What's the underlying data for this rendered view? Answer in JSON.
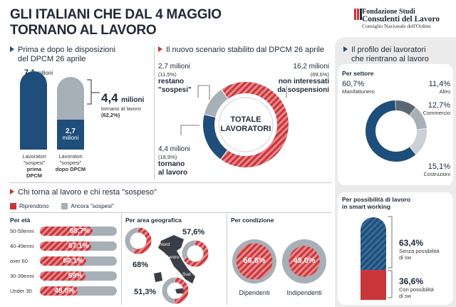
{
  "header": {
    "title_line1": "GLI ITALIANI CHE DAL 4 MAGGIO",
    "title_line2": "TORNANO AL LAVORO",
    "logo_line1": "Fondazione Studi",
    "logo_line2": "Consulenti del Lavoro",
    "logo_line3": "Consiglio Nazionale dell'Ordine"
  },
  "colors": {
    "navy": "#1e4e79",
    "red": "#c8363c",
    "grey": "#a7afb7",
    "light_grey": "#ebebeb"
  },
  "section1": {
    "heading_line1": "Prima e dopo le disposizioni",
    "heading_line2": "del DPCM 26 aprile",
    "bar1_value": "7,1",
    "bar1_unit": "milioni",
    "bar2_value": "2,7",
    "bar2_unit": "milioni",
    "bar1_label_line1": "Lavoratori",
    "bar1_label_line2": "\"sospesi\"",
    "bar1_label_line3": "prima DPCM",
    "bar2_label_line1": "Lavoratori",
    "bar2_label_line2": "\"sospesi\"",
    "bar2_label_line3": "dopo DPCM",
    "return_value": "4,4",
    "return_unit": "milioni",
    "return_text": "tornano al lavoro",
    "return_pct": "(62,2%)"
  },
  "section2": {
    "heading": "Il nuovo scenario stabilito dal DPCM 26 aprile",
    "center_line1": "TOTALE",
    "center_line2": "LAVORATORI",
    "a_value": "2,7 milioni",
    "a_pct": "(11,5%)",
    "a_label_line1": "restano",
    "a_label_line2": "\"sospesi\"",
    "b_value": "16,2 milioni",
    "b_pct": "(69,6%)",
    "b_label_line1": "non interessati",
    "b_label_line2": "da sospensioni",
    "c_value": "4,4 milioni",
    "c_pct": "(18,9%)",
    "c_label_line1": "tornano",
    "c_label_line2": "al lavoro"
  },
  "section3": {
    "heading_line1": "Il profilo dei lavoratori",
    "heading_line2": "che rientrano al lavoro",
    "sector_title": "Per settore",
    "s1_pct": "60,7%",
    "s1_label": "Manifatturiero",
    "s2_pct": "11,4%",
    "s2_label": "Altro",
    "s3_pct": "12,7%",
    "s3_label": "Commercio",
    "s4_pct": "15,1%",
    "s4_label": "Costruzioni",
    "sw_title_line1": "Per possibilità di lavoro",
    "sw_title_line2": "in smart working",
    "sw1_pct": "63,4%",
    "sw1_line1": "Senza possibilità",
    "sw1_line2": "di sw",
    "sw2_pct": "36,6%",
    "sw2_line1": "Con possibilità",
    "sw2_line2": "di sw"
  },
  "section4": {
    "heading": "Chi torna al lavoro e chi resta \"sospeso\"",
    "legend_red": "Riprendono",
    "legend_grey": "Ancora \"sospesi\"",
    "age_title": "Per età",
    "geo_title": "Per area geografica",
    "geo_nord": "Nord",
    "geo_centro": "Centro",
    "geo_sud": "Sud",
    "geo_nord_pct": "57,6%",
    "geo_centro_pct": "68%",
    "geo_sud_pct": "51,3%",
    "cond_title": "Per condizione",
    "cond1_pct": "66,8%",
    "cond1_label": "Dipendenti",
    "cond2_pct": "49,0%",
    "cond2_label": "Indipendenti"
  },
  "chart_data": [
    {
      "type": "bar",
      "title": "Prima e dopo le disposizioni del DPCM 26 aprile",
      "categories": [
        "Lavoratori \"sospesi\" prima DPCM",
        "Lavoratori \"sospesi\" dopo DPCM"
      ],
      "values": [
        7.1,
        2.7
      ],
      "unit": "milioni"
    },
    {
      "type": "pie",
      "title": "Il nuovo scenario stabilito dal DPCM 26 aprile",
      "categories": [
        "restano \"sospesi\"",
        "non interessati da sospensioni",
        "tornano al lavoro"
      ],
      "values": [
        11.5,
        69.6,
        18.9
      ],
      "absolute_values": [
        2.7,
        16.2,
        4.4
      ],
      "unit": "%"
    },
    {
      "type": "pie",
      "title": "Per settore",
      "categories": [
        "Manifatturiero",
        "Altro",
        "Commercio",
        "Costruzioni"
      ],
      "values": [
        60.7,
        11.4,
        12.7,
        15.1
      ],
      "unit": "%"
    },
    {
      "type": "bar",
      "title": "Per possibilità di lavoro in smart working",
      "categories": [
        "Senza possibilità di sw",
        "Con possibilità di sw"
      ],
      "values": [
        63.4,
        36.6
      ],
      "unit": "%"
    },
    {
      "type": "bar",
      "title": "Per età",
      "categories": [
        "50-59enni",
        "40-49enni",
        "over 60",
        "30-39enni",
        "Under 30"
      ],
      "values": [
        68.7,
        67.1,
        60.1,
        59,
        48.8
      ],
      "labels": [
        "68,7%",
        "67,1%",
        "60,1%",
        "59%",
        "48,8%"
      ],
      "series_name": "Riprendono",
      "unit": "%"
    },
    {
      "type": "pie",
      "title": "Per area geografica",
      "categories": [
        "Nord",
        "Centro",
        "Sud"
      ],
      "values": [
        57.6,
        68,
        51.3
      ],
      "unit": "%"
    },
    {
      "type": "pie",
      "title": "Per condizione",
      "categories": [
        "Dipendenti",
        "Indipendenti"
      ],
      "values": [
        66.8,
        49.0
      ],
      "unit": "%"
    }
  ]
}
